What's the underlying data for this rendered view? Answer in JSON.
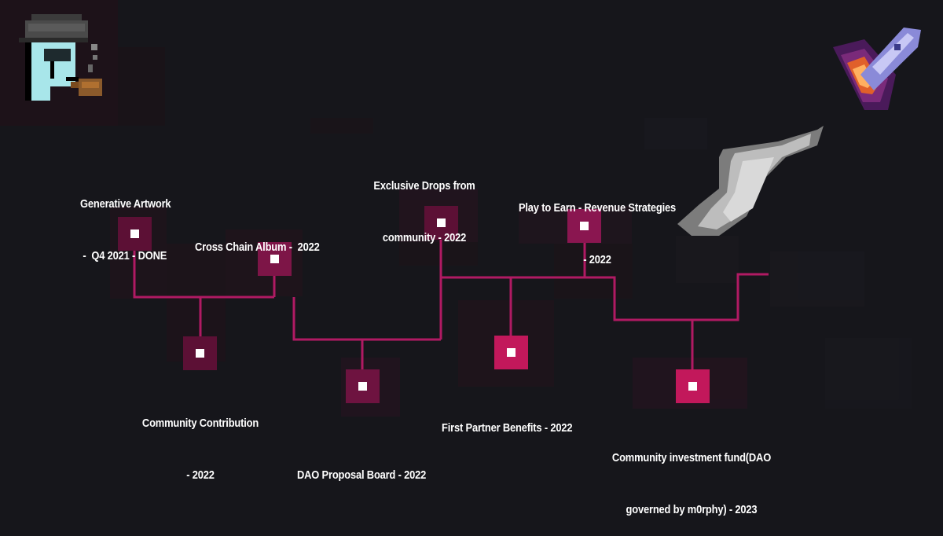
{
  "colors": {
    "background": "#16161b",
    "line": "#b01a63",
    "node_bright": "#c2185b",
    "node_dim": "#5c1035",
    "node_mid": "#7d1547",
    "dot": "#ffffff",
    "text": "#ffffff"
  },
  "decorations": {
    "character": "pixel-character-with-pipe",
    "rocket": "pixel-rocket-icon",
    "smoke": "pixel-smoke-cloud"
  },
  "milestones": [
    {
      "id": "generative-artwork",
      "lines": [
        "Generative Artwork",
        " -  Q4 2021 - DONE"
      ]
    },
    {
      "id": "cross-chain-album",
      "lines": [
        "Cross Chain Album -  2022"
      ]
    },
    {
      "id": "exclusive-drops",
      "lines": [
        "Exclusive Drops from",
        "community - 2022"
      ]
    },
    {
      "id": "play-to-earn",
      "lines": [
        "Play to Earn - Revenue Strategies",
        "- 2022"
      ]
    },
    {
      "id": "community-contribution",
      "lines": [
        "Community Contribution",
        "- 2022"
      ]
    },
    {
      "id": "dao-proposal-board",
      "lines": [
        "DAO Proposal Board - 2022"
      ]
    },
    {
      "id": "first-partner-benefits",
      "lines": [
        "First Partner Benefits - 2022"
      ]
    },
    {
      "id": "community-investment-fund",
      "lines": [
        "Community investment fund(DAO",
        "governed by m0rphy) - 2023"
      ]
    }
  ]
}
